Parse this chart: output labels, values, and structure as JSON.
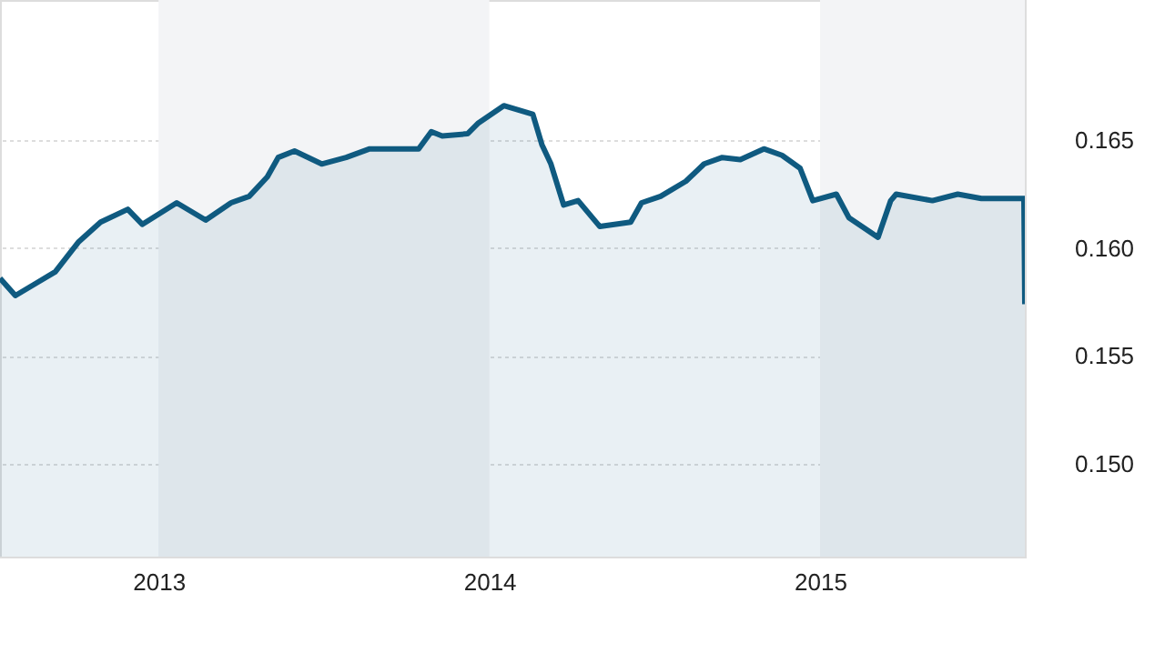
{
  "chart_data": {
    "type": "area",
    "x": [
      "2012-07-10",
      "2012-07-27",
      "2012-08-20",
      "2012-09-09",
      "2012-10-05",
      "2012-10-29",
      "2012-11-28",
      "2012-12-14",
      "2013-01-21",
      "2013-02-22",
      "2013-03-22",
      "2013-04-11",
      "2013-05-01",
      "2013-05-13",
      "2013-05-31",
      "2013-06-30",
      "2013-07-27",
      "2013-08-22",
      "2013-10-15",
      "2013-10-29",
      "2013-11-10",
      "2013-12-08",
      "2013-12-20",
      "2014-01-17",
      "2014-02-02",
      "2014-02-18",
      "2014-02-28",
      "2014-03-10",
      "2014-03-24",
      "2014-04-09",
      "2014-05-03",
      "2014-06-06",
      "2014-06-18",
      "2014-07-09",
      "2014-08-06",
      "2014-08-26",
      "2014-09-15",
      "2014-10-05",
      "2014-10-31",
      "2014-11-20",
      "2014-12-10",
      "2014-12-24",
      "2015-01-19",
      "2015-02-02",
      "2015-03-06",
      "2015-03-20",
      "2015-03-26",
      "2015-05-05",
      "2015-06-02",
      "2015-06-28",
      "2015-08-14",
      "2015-08-15"
    ],
    "series": [
      {
        "color": "#0f5a80",
        "values": [
          0.1586,
          0.1578,
          0.1584,
          0.1589,
          0.1603,
          0.1612,
          0.1618,
          0.1611,
          0.1621,
          0.1613,
          0.1621,
          0.1624,
          0.1633,
          0.1642,
          0.1645,
          0.1639,
          0.1642,
          0.1646,
          0.1646,
          0.1654,
          0.1652,
          0.1653,
          0.1658,
          0.1666,
          0.1664,
          0.1662,
          0.1648,
          0.1639,
          0.162,
          0.1622,
          0.161,
          0.1612,
          0.1621,
          0.1624,
          0.1631,
          0.1639,
          0.1642,
          0.1641,
          0.1646,
          0.1643,
          0.1637,
          0.1622,
          0.1625,
          0.1614,
          0.1605,
          0.1622,
          0.1625,
          0.1622,
          0.1625,
          0.1623,
          0.1623,
          0.1574
        ]
      }
    ],
    "xlim": [
      "2012-07-10",
      "2015-08-15"
    ],
    "xticks": [
      {
        "value": "2013-01-01",
        "label": "2013"
      },
      {
        "value": "2014-01-01",
        "label": "2014"
      },
      {
        "value": "2015-01-01",
        "label": "2015"
      }
    ],
    "ylim": [
      0.1457,
      0.1715
    ],
    "yticks": [
      {
        "value": 0.15,
        "label": "0.150"
      },
      0.155,
      {
        "value": 0.16,
        "label": "0.160"
      },
      0.165
    ],
    "grid": "y",
    "bands": [
      {
        "axis": "x",
        "from": "2013-01-01",
        "to": "2014-01-01",
        "color": "#f3f4f6"
      },
      {
        "axis": "x",
        "from": "2015-01-01",
        "to": "2015-08-15",
        "color": "#f3f4f6"
      }
    ]
  }
}
